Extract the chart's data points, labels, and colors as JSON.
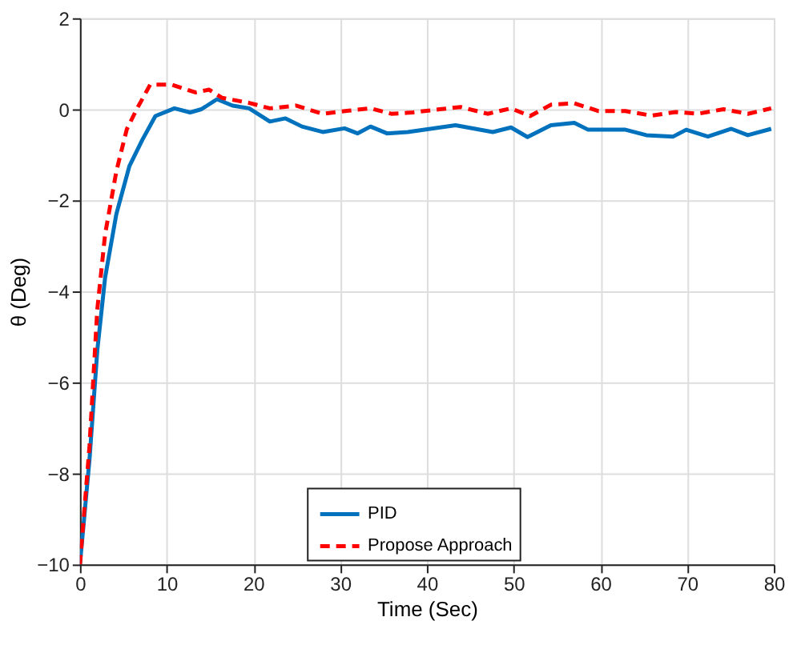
{
  "chart_data": {
    "type": "line",
    "xlabel": "Time (Sec)",
    "ylabel": "θ (Deg)",
    "xlim": [
      0,
      80
    ],
    "ylim": [
      -10,
      2
    ],
    "xticks": [
      0,
      10,
      20,
      30,
      40,
      50,
      60,
      70,
      80
    ],
    "yticks": [
      -10,
      -8,
      -6,
      -4,
      -2,
      0,
      2
    ],
    "grid": true,
    "legend": "bottom",
    "series": [
      {
        "name": "PID",
        "color": "#0072bd",
        "line_style": "solid",
        "x": [
          0,
          1.1,
          2,
          2.9,
          4.2,
          5.7,
          7.2,
          8.7,
          10.9,
          12.7,
          14,
          15.8,
          17.6,
          19.5,
          21.9,
          23.7,
          25.6,
          28,
          30.5,
          32,
          33.5,
          35.4,
          37.8,
          43.3,
          47.6,
          49.7,
          51.6,
          54.3,
          57,
          58.6,
          62.9,
          65.3,
          68.4,
          69.9,
          72.4,
          75.1,
          77,
          79.7
        ],
        "values": [
          -10,
          -7.7,
          -5.3,
          -3.7,
          -2.3,
          -1.25,
          -0.67,
          -0.15,
          0.02,
          -0.07,
          0,
          0.22,
          0.08,
          0.02,
          -0.27,
          -0.2,
          -0.38,
          -0.5,
          -0.42,
          -0.53,
          -0.38,
          -0.53,
          -0.5,
          -0.35,
          -0.5,
          -0.4,
          -0.61,
          -0.35,
          -0.3,
          -0.45,
          -0.45,
          -0.57,
          -0.6,
          -0.45,
          -0.6,
          -0.43,
          -0.57,
          -0.43
        ]
      },
      {
        "name": "Propose Approach",
        "color": "#ff0000",
        "line_style": "dashed",
        "x": [
          0,
          1.1,
          2,
          2.9,
          4.2,
          5.4,
          6.6,
          8.1,
          10.6,
          13.3,
          14.9,
          16.4,
          19.5,
          21.9,
          24.9,
          28,
          31,
          33.5,
          35.9,
          38.4,
          41.5,
          43.9,
          47,
          49.7,
          51.9,
          54.3,
          57,
          59.8,
          62.9,
          65.9,
          68.7,
          71.2,
          74.2,
          77,
          79.7
        ],
        "values": [
          -10,
          -7.4,
          -4.4,
          -2.75,
          -1.36,
          -0.44,
          0.02,
          0.54,
          0.54,
          0.37,
          0.43,
          0.25,
          0.14,
          0.02,
          0.08,
          -0.1,
          -0.03,
          0.02,
          -0.1,
          -0.07,
          0,
          0.05,
          -0.1,
          0.02,
          -0.15,
          0.1,
          0.13,
          -0.04,
          -0.04,
          -0.14,
          -0.06,
          -0.1,
          0,
          -0.1,
          0.02
        ]
      }
    ]
  }
}
